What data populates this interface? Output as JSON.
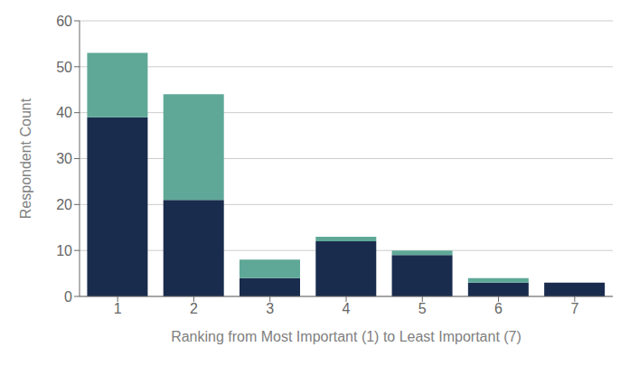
{
  "chart_data": {
    "type": "bar",
    "stacked": true,
    "categories": [
      "1",
      "2",
      "3",
      "4",
      "5",
      "6",
      "7"
    ],
    "series": [
      {
        "color": "#1a2c4e",
        "values": [
          39,
          21,
          4,
          12,
          9,
          3,
          3
        ]
      },
      {
        "color": "#5fa898",
        "values": [
          14,
          23,
          4,
          1,
          1,
          1,
          0
        ]
      }
    ],
    "xlabel": "Ranking from Most Important (1) to Least Important (7)",
    "ylabel": "Respondent Count",
    "ylim": [
      0,
      60
    ],
    "yticks": [
      0,
      10,
      20,
      30,
      40,
      50,
      60
    ],
    "grid": true
  }
}
